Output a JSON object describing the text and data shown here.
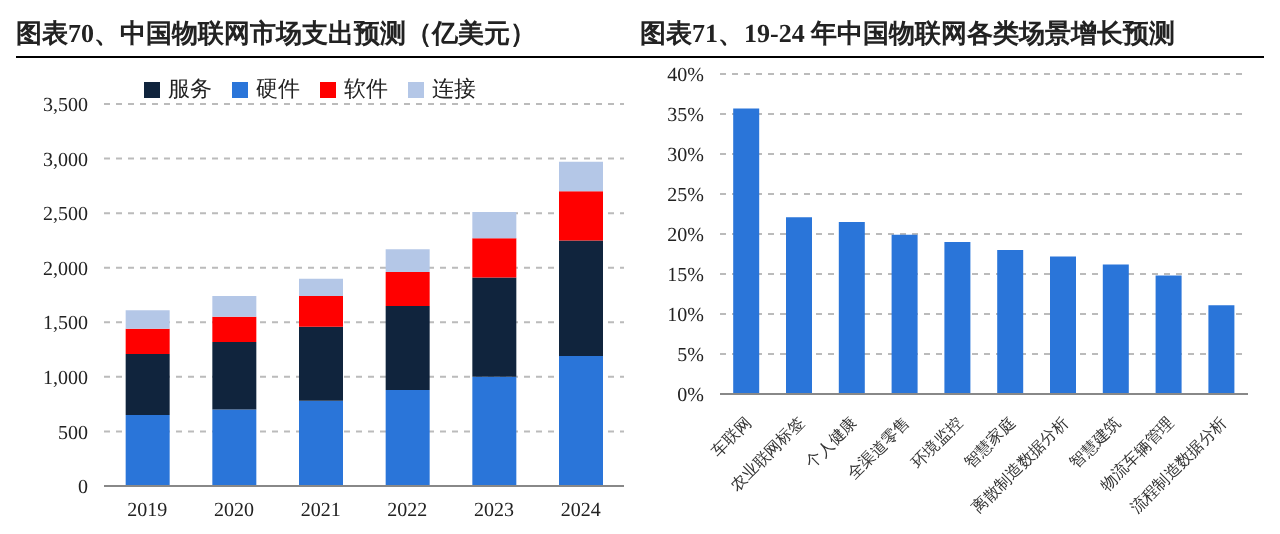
{
  "chart_data": [
    {
      "type": "bar",
      "title": "图表70、中国物联网市场支出预测（亿美元）",
      "categories": [
        "2019",
        "2020",
        "2021",
        "2022",
        "2023",
        "2024"
      ],
      "stacked": true,
      "legend": "top",
      "grid": "y",
      "series": [
        {
          "name": "硬件",
          "color": "#2a75d9",
          "values": [
            650,
            700,
            780,
            880,
            1000,
            1190
          ]
        },
        {
          "name": "服务",
          "color": "#10243d",
          "values": [
            560,
            620,
            680,
            770,
            910,
            1060
          ]
        },
        {
          "name": "软件",
          "color": "#ff0000",
          "values": [
            230,
            230,
            280,
            310,
            360,
            450
          ]
        },
        {
          "name": "连接",
          "color": "#b4c7e7",
          "values": [
            170,
            190,
            160,
            210,
            240,
            270
          ]
        }
      ],
      "ylim": [
        0,
        3500
      ],
      "yticks": [
        0,
        {
          "value": 500,
          "label": "500"
        },
        {
          "value": 1000,
          "label": "1,000"
        },
        {
          "value": 1500,
          "label": "1,500"
        },
        {
          "value": 2000,
          "label": "2,000"
        },
        {
          "value": 2500,
          "label": "2,500"
        },
        {
          "value": 3000,
          "label": "3,000"
        },
        {
          "value": 3500,
          "label": "3,500"
        }
      ]
    },
    {
      "type": "bar",
      "title": "图表71、19-24 年中国物联网各类场景增长预测",
      "categories": [
        "车联网",
        "农业联网标签",
        "个人健康",
        "全渠道零售",
        "环境监控",
        "智慧家庭",
        "离散制造数据分析",
        "智慧建筑",
        "物流车辆管理",
        "流程制造数据分析"
      ],
      "grid": "y",
      "values": [
        35.7,
        22.1,
        21.5,
        19.9,
        19.0,
        18.0,
        17.2,
        16.2,
        14.8,
        11.1
      ],
      "color": "#2a75d9",
      "ylim": [
        0,
        40
      ],
      "yticks": [
        {
          "value": 0,
          "label": "0%"
        },
        {
          "value": 5,
          "label": "5%"
        },
        {
          "value": 10,
          "label": "10%"
        },
        {
          "value": 15,
          "label": "15%"
        },
        {
          "value": 20,
          "label": "20%"
        },
        {
          "value": 25,
          "label": "25%"
        },
        {
          "value": 30,
          "label": "30%"
        },
        {
          "value": 35,
          "label": "35%"
        },
        {
          "value": 40,
          "label": "40%"
        }
      ]
    }
  ]
}
